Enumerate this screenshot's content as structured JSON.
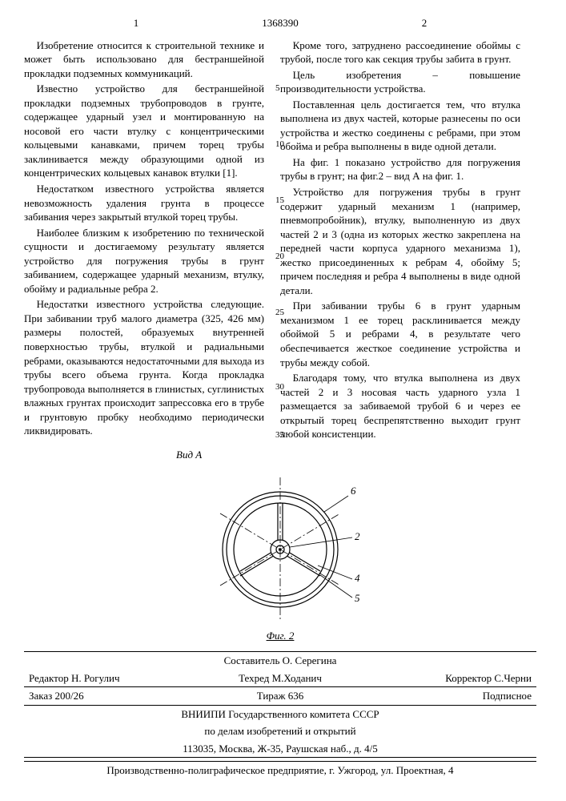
{
  "header": {
    "col1num": "1",
    "docnum": "1368390",
    "col2num": "2"
  },
  "left": {
    "p1": "Изобретение относится к строительной технике и может быть использовано для бестраншейной прокладки подземных коммуникаций.",
    "p2": "Известно устройство для бестраншейной прокладки подземных трубопроводов в грунте, содержащее ударный узел и монтированную на носовой его части втулку с концентрическими кольцевыми канавками, причем торец трубы заклинивается между образующими одной из концентрических кольцевых канавок втулки [1].",
    "p3": "Недостатком известного устройства является невозможность удаления грунта в процессе забивания через закрытый втулкой торец трубы.",
    "p4": "Наиболее близким к изобретению по технической сущности и достигаемому результату является устройство для погружения трубы в грунт забиванием, содержащее ударный механизм, втулку, обойму и радиальные ребра 2.",
    "p5": "Недостатки известного устройства следующие. При забивании труб малого диаметра (325, 426 мм) размеры полостей, образуемых внутренней поверхностью трубы, втулкой и радиальными ребрами, оказываются недостаточными для выхода из трубы всего объема грунта. Когда прокладка трубопровода выполняется в глинистых, суглинистых влажных грунтах происходит запрессовка его в трубе и грунтовую пробку необходимо периодически ликвидировать."
  },
  "right": {
    "p1": "Кроме того, затруднено рассоединение обоймы с трубой, после того как секция трубы забита в грунт.",
    "p2": "Цель изобретения – повышение производительности устройства.",
    "p3": "Поставленная цель достигается тем, что втулка выполнена из двух частей, которые разнесены по оси устройства и жестко соединены с ребрами, при этом обойма и ребра выполнены в виде одной детали.",
    "p4": "На фиг. 1 показано устройство для погружения трубы в грунт; на фиг.2 – вид А на фиг. 1.",
    "p5": "Устройство для погружения трубы в грунт содержит ударный механизм 1 (например, пневмопробойник), втулку, выполненную из двух частей 2 и 3 (одна из которых жестко закреплена на передней части корпуса ударного механизма 1), жестко присоединенных к ребрам 4, обойму 5; причем последняя и ребра 4 выполнены в виде одной детали.",
    "p6": "При забивании трубы 6 в грунт ударным механизмом 1 ее торец расклинивается между обоймой 5 и ребрами 4, в результате чего обеспечивается жесткое соединение устройства и трубы между собой.",
    "p7": "Благодаря тому, что втулка выполнена из двух частей 2 и 3 носовая часть ударного узла 1 размещается за забиваемой трубой 6 и через ее открытый торец беспрепятственно выходит грунт любой консистенции."
  },
  "linenums": [
    "5",
    "10",
    "15",
    "20",
    "25",
    "30",
    "35"
  ],
  "lineoffsets": [
    55,
    125,
    195,
    265,
    335,
    428,
    488
  ],
  "fig": {
    "vida": "Вид А",
    "caption": "Фиг. 2",
    "labels": {
      "l6": "6",
      "l2": "2",
      "l4": "4",
      "l5": "5"
    },
    "stroke": "#000000",
    "fill": "#ffffff"
  },
  "footer": {
    "composer": "Составитель О. Серегина",
    "editor": "Редактор Н. Рогулич",
    "tech": "Техред М.Ходанич",
    "corrector": "Корректор С.Черни",
    "order": "Заказ 200/26",
    "tirazh": "Тираж 636",
    "sign": "Подписное",
    "org1": "ВНИИПИ Государственного комитета СССР",
    "org2": "по делам изобретений и открытий",
    "addr": "113035, Москва, Ж-35, Раушская наб., д. 4/5",
    "press": "Производственно-полиграфическое предприятие, г. Ужгород, ул. Проектная, 4"
  }
}
